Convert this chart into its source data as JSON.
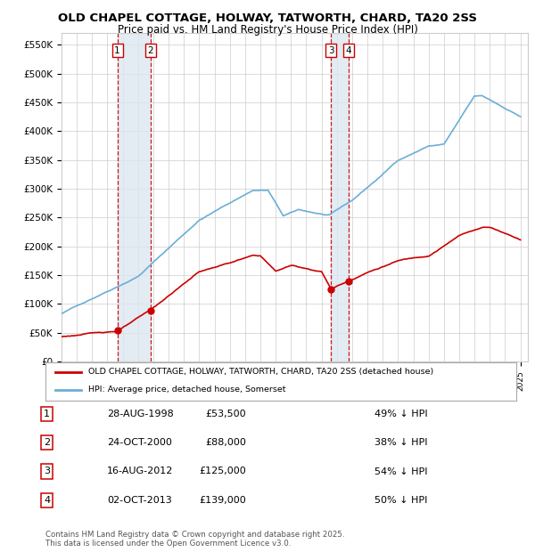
{
  "title": "OLD CHAPEL COTTAGE, HOLWAY, TATWORTH, CHARD, TA20 2SS",
  "subtitle": "Price paid vs. HM Land Registry's House Price Index (HPI)",
  "ylim": [
    0,
    570000
  ],
  "xlim_start": 1995.0,
  "xlim_end": 2025.5,
  "sale_dates": [
    1998.65,
    2000.81,
    2012.62,
    2013.75
  ],
  "sale_prices": [
    53500,
    88000,
    125000,
    139000
  ],
  "sale_labels": [
    "1",
    "2",
    "3",
    "4"
  ],
  "sale_date_strs": [
    "28-AUG-1998",
    "24-OCT-2000",
    "16-AUG-2012",
    "02-OCT-2013"
  ],
  "sale_price_strs": [
    "£53,500",
    "£88,000",
    "£125,000",
    "£139,000"
  ],
  "sale_pct_strs": [
    "49% ↓ HPI",
    "38% ↓ HPI",
    "54% ↓ HPI",
    "50% ↓ HPI"
  ],
  "red_line_color": "#cc0000",
  "blue_line_color": "#6baed6",
  "vline_color": "#cc0000",
  "shade_color": "#dce6f1",
  "grid_color": "#cccccc",
  "background_color": "#ffffff",
  "legend_house_label": "OLD CHAPEL COTTAGE, HOLWAY, TATWORTH, CHARD, TA20 2SS (detached house)",
  "legend_hpi_label": "HPI: Average price, detached house, Somerset",
  "footer_text": "Contains HM Land Registry data © Crown copyright and database right 2025.\nThis data is licensed under the Open Government Licence v3.0."
}
